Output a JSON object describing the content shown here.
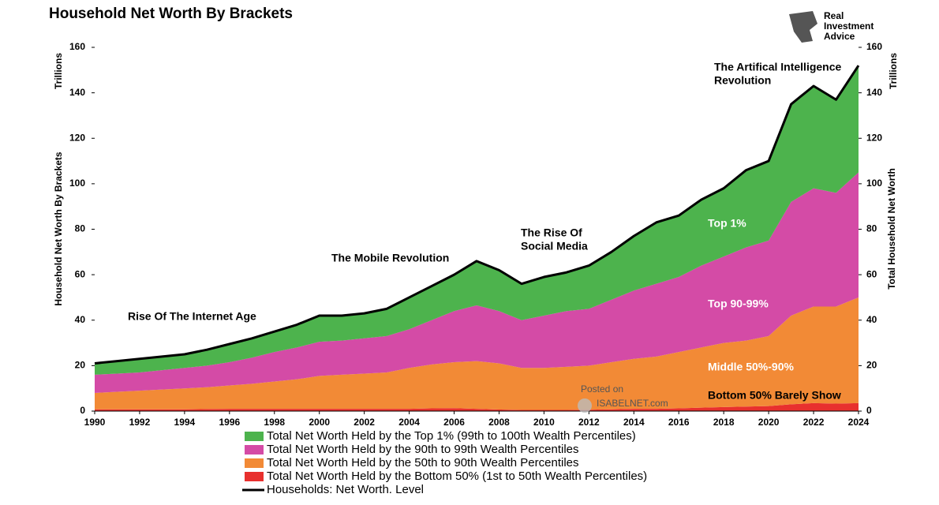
{
  "chart_data": {
    "type": "area",
    "title": "Household Net Worth By Brackets",
    "logo": [
      "Real",
      "Investment",
      "Advice"
    ],
    "y_label_unit": "Trillions",
    "y_label": "Household Net Worth By Brackets",
    "y2_label_unit": "Trillions",
    "y2_label": "Total Household Net Worth",
    "annotations": [
      [
        "Rise Of The Internet Age"
      ],
      [
        "The Mobile Revolution"
      ],
      [
        "The Rise Of",
        "Social Media"
      ],
      [
        "The Artifical Intelligence",
        "Revolution"
      ]
    ],
    "segment_labels": [
      "Top 1%",
      "Top 90-99%",
      "Middle 50%-90%",
      "Bottom 50% Barely Show"
    ],
    "watermark": [
      "Posted on",
      "ISABELNET.com"
    ],
    "stacked": true,
    "x": [
      1990,
      1991,
      1992,
      1993,
      1994,
      1995,
      1996,
      1997,
      1998,
      1999,
      2000,
      2001,
      2002,
      2003,
      2004,
      2005,
      2006,
      2007,
      2008,
      2009,
      2010,
      2011,
      2012,
      2013,
      2014,
      2015,
      2016,
      2017,
      2018,
      2019,
      2020,
      2021,
      2022,
      2023,
      2024
    ],
    "xlim": [
      1990,
      2024
    ],
    "xticks": [
      1990,
      1992,
      1994,
      1996,
      1998,
      2000,
      2002,
      2004,
      2006,
      2008,
      2010,
      2012,
      2014,
      2016,
      2018,
      2020,
      2022,
      2024
    ],
    "ylim": [
      0,
      160
    ],
    "yticks": [
      0,
      20,
      40,
      60,
      80,
      100,
      120,
      140,
      160
    ],
    "y2lim": [
      0,
      160
    ],
    "y2ticks": [
      0,
      20,
      40,
      60,
      80,
      100,
      120,
      140,
      160
    ],
    "series": [
      {
        "name": "Total Net Worth Held by the Top 1% (99th to 100th Wealth Percentiles)",
        "color": "#4db34d",
        "values": [
          5,
          5.5,
          6,
          6,
          6,
          7,
          8,
          8.5,
          9,
          10,
          11.5,
          11,
          11,
          12,
          14,
          15,
          16,
          19.5,
          18,
          16,
          17,
          17,
          19,
          21,
          24,
          27,
          27,
          29,
          30,
          34,
          35,
          43,
          45,
          41,
          47
        ]
      },
      {
        "name": "Total Net Worth Held by the 90th to 99th Wealth Percentiles",
        "color": "#d44ba6",
        "values": [
          8,
          8,
          8,
          8.5,
          9,
          9.5,
          10.2,
          11.5,
          13,
          14,
          15,
          15,
          15.5,
          16,
          17,
          19.5,
          22.5,
          24.5,
          23,
          21,
          23,
          24.5,
          25,
          27.5,
          30,
          32,
          33,
          36,
          38,
          41,
          42,
          50,
          52,
          50,
          55
        ]
      },
      {
        "name": "Total Net Worth Held by the 50th to 90th Wealth Percentiles",
        "color": "#f28a36",
        "values": [
          7.2,
          7.7,
          8.2,
          8.7,
          9.2,
          9.6,
          10.3,
          11,
          12,
          13,
          14.5,
          15,
          15.5,
          16,
          18,
          19.3,
          20.2,
          21,
          20.3,
          18.5,
          18.5,
          19,
          19.4,
          20.7,
          22,
          23,
          24.8,
          26.5,
          28.2,
          29,
          30.8,
          39,
          42.5,
          42.7,
          46.5
        ]
      },
      {
        "name": "Total Net Worth Held by the Bottom 50% (1st to 50th Wealth Percentiles)",
        "color": "#e8302e",
        "values": [
          0.8,
          0.8,
          0.8,
          0.8,
          0.8,
          0.9,
          1,
          1,
          1,
          1,
          1,
          1,
          1,
          1,
          1,
          1.2,
          1.3,
          1,
          0.7,
          0.5,
          0.5,
          0.5,
          0.6,
          0.8,
          1,
          1,
          1.2,
          1.5,
          1.8,
          2,
          2.2,
          3,
          3.5,
          3.3,
          3.5
        ]
      },
      {
        "name": "Households: Net Worth. Level",
        "color": "#000000",
        "type": "line",
        "axis": "y2",
        "values": [
          21,
          22,
          23,
          24,
          25,
          27,
          29.5,
          32,
          35,
          38,
          42,
          42,
          43,
          45,
          50,
          55,
          60,
          66,
          62,
          56,
          59,
          61,
          64,
          70,
          77,
          83,
          86,
          93,
          98,
          106,
          110,
          135,
          143,
          137,
          152
        ]
      }
    ]
  }
}
